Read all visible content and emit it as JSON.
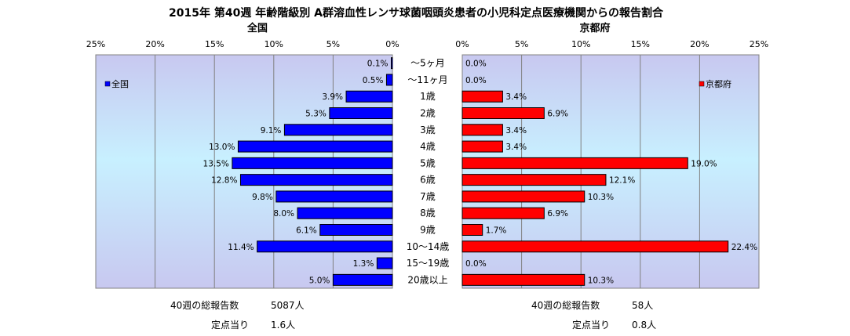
{
  "title": "2015年 第40週 年齢階級別 A群溶血性レンサ球菌咽頭炎患者の小児科定点医療機関からの報告割合",
  "chart_data": {
    "type": "bar",
    "orientation": "horizontal",
    "categories": [
      "～5ヶ月",
      "～11ヶ月",
      "1歳",
      "2歳",
      "3歳",
      "4歳",
      "5歳",
      "6歳",
      "7歳",
      "8歳",
      "9歳",
      "10～14歳",
      "15～19歳",
      "20歳以上"
    ],
    "xlim": [
      0,
      25
    ],
    "x_ticks": [
      "0%",
      "5%",
      "10%",
      "15%",
      "20%",
      "25%"
    ],
    "grid": true,
    "series": [
      {
        "name": "全国",
        "panel_title": "全国",
        "direction": "left",
        "color": "#0000ff",
        "values": [
          0.1,
          0.5,
          3.9,
          5.3,
          9.1,
          13.0,
          13.5,
          12.8,
          9.8,
          8.0,
          6.1,
          11.4,
          1.3,
          5.0
        ],
        "labels": [
          "0.1%",
          "0.5%",
          "3.9%",
          "5.3%",
          "9.1%",
          "13.0%",
          "13.5%",
          "12.8%",
          "9.8%",
          "8.0%",
          "6.1%",
          "11.4%",
          "1.3%",
          "5.0%"
        ],
        "legend": "全国",
        "legend_position": "top-left"
      },
      {
        "name": "京都府",
        "panel_title": "京都府",
        "direction": "right",
        "color": "#ff0000",
        "values": [
          0.0,
          0.0,
          3.4,
          6.9,
          3.4,
          3.4,
          19.0,
          12.1,
          10.3,
          6.9,
          1.7,
          22.4,
          0.0,
          10.3
        ],
        "labels": [
          "0.0%",
          "0.0%",
          "3.4%",
          "6.9%",
          "3.4%",
          "3.4%",
          "19.0%",
          "12.1%",
          "10.3%",
          "6.9%",
          "1.7%",
          "22.4%",
          "0.0%",
          "10.3%"
        ],
        "legend": "京都府",
        "legend_position": "top-right"
      }
    ]
  },
  "footer": {
    "left": {
      "total_label": "40週の総報告数",
      "total_value": "5087人",
      "per_label": "定点当り",
      "per_value": "1.6人"
    },
    "right": {
      "total_label": "40週の総報告数",
      "total_value": "58人",
      "per_label": "定点当り",
      "per_value": "0.8人"
    }
  }
}
